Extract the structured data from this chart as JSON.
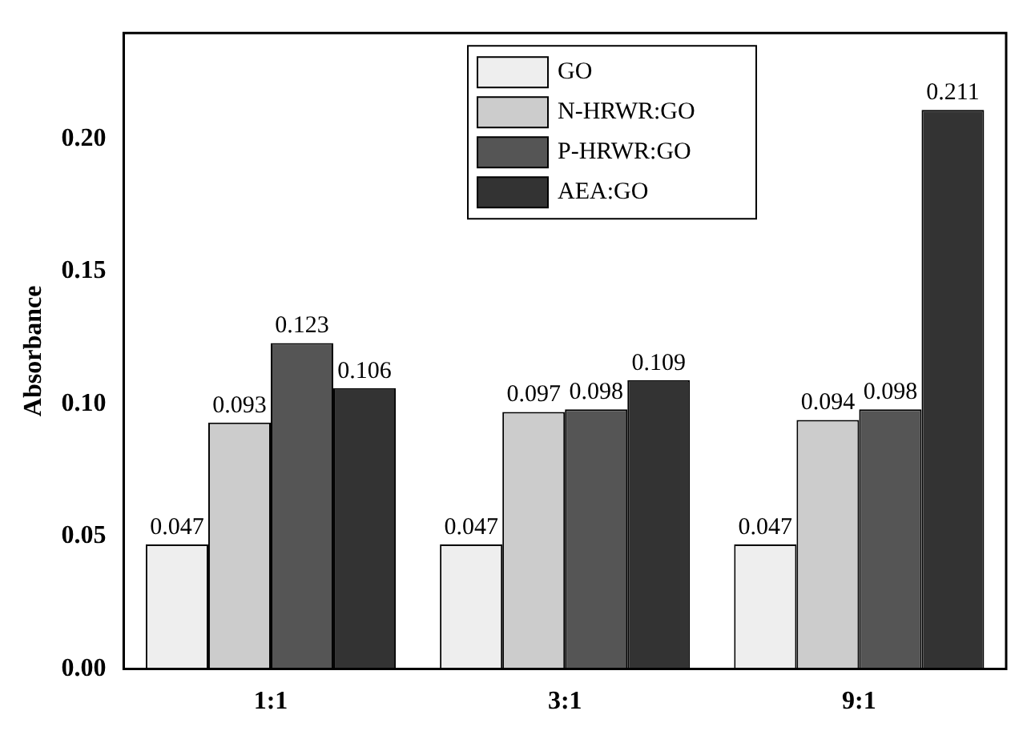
{
  "chart_data": {
    "type": "bar",
    "ylabel": "Absorbance",
    "categories": [
      "1:1",
      "3:1",
      "9:1"
    ],
    "series": [
      {
        "name": "GO",
        "color": "#eeeeee",
        "values": [
          0.047,
          0.047,
          0.047
        ]
      },
      {
        "name": "N-HRWR:GO",
        "color": "#cccccc",
        "values": [
          0.093,
          0.097,
          0.094
        ]
      },
      {
        "name": "P-HRWR:GO",
        "color": "#555555",
        "values": [
          0.123,
          0.098,
          0.098
        ]
      },
      {
        "name": "AEA:GO",
        "color": "#333333",
        "values": [
          0.106,
          0.109,
          0.211
        ]
      }
    ],
    "ylim": [
      0,
      0.24
    ],
    "yticks": [
      {
        "value": 0,
        "label": "0.00"
      },
      {
        "value": 0.05,
        "label": "0.05"
      },
      {
        "value": 0.1,
        "label": "0.10"
      },
      {
        "value": 0.15,
        "label": "0.15"
      },
      {
        "value": 0.2,
        "label": "0.20"
      }
    ],
    "data_labels": true,
    "legend": "top right",
    "grid": false
  }
}
